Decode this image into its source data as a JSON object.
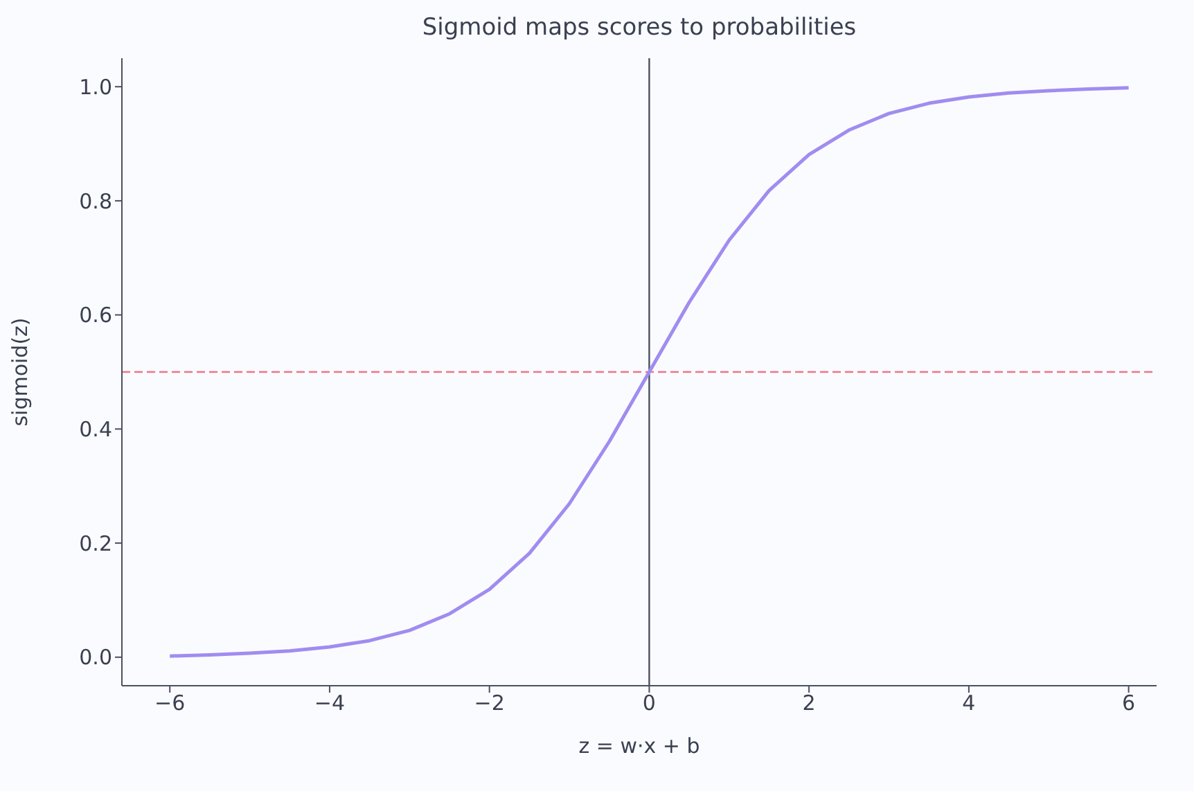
{
  "chart_data": {
    "type": "line",
    "title": "Sigmoid maps scores to probabilities",
    "xlabel": "z = w·x + b",
    "ylabel": "sigmoid(z)",
    "x": [
      -6,
      -5.5,
      -5,
      -4.5,
      -4,
      -3.5,
      -3,
      -2.5,
      -2,
      -1.5,
      -1,
      -0.5,
      0,
      0.5,
      1,
      1.5,
      2,
      2.5,
      3,
      3.5,
      4,
      4.5,
      5,
      5.5,
      6
    ],
    "series": [
      {
        "color": "#a18cf0",
        "values": [
          0.002,
          0.004,
          0.007,
          0.011,
          0.018,
          0.029,
          0.047,
          0.076,
          0.119,
          0.182,
          0.269,
          0.378,
          0.5,
          0.622,
          0.731,
          0.818,
          0.881,
          0.924,
          0.953,
          0.971,
          0.982,
          0.989,
          0.993,
          0.996,
          0.998
        ]
      }
    ],
    "xlim": [
      -6.6,
      6.35
    ],
    "xticks": [
      {
        "value": -6,
        "label": "−6"
      },
      {
        "value": -4,
        "label": "−4"
      },
      {
        "value": -2,
        "label": "−2"
      },
      0,
      2,
      4,
      6
    ],
    "ylim": [
      -0.05,
      1.05
    ],
    "yticks": [
      {
        "value": 0,
        "label": "0.0"
      },
      {
        "value": 0.2,
        "label": "0.2"
      },
      {
        "value": 0.4,
        "label": "0.4"
      },
      {
        "value": 0.6,
        "label": "0.6"
      },
      {
        "value": 0.8,
        "label": "0.8"
      },
      {
        "value": 1,
        "label": "1.0"
      }
    ],
    "ref_lines": [
      {
        "axis": "y",
        "value": 0.5,
        "color": "#f07585",
        "line_style": "dashed"
      },
      {
        "axis": "x",
        "value": 0,
        "color": "#4a5060",
        "line_style": "solid"
      }
    ],
    "grid": false,
    "legend": false,
    "marker": "none",
    "line_style": "solid"
  }
}
